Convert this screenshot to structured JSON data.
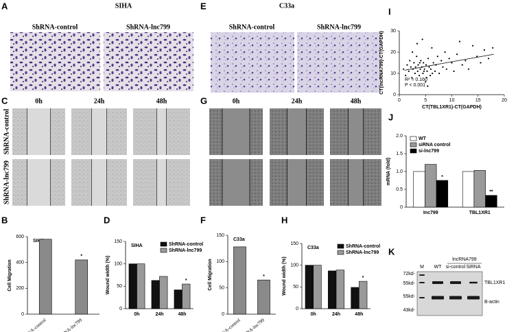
{
  "figure": {
    "A": {
      "label": "A",
      "title": "SIHA",
      "columns": [
        "ShRNA-control",
        "ShRNA-lnc799"
      ]
    },
    "E": {
      "label": "E",
      "title": "C33a",
      "columns": [
        "ShRNA-control",
        "ShRNA-lnc799"
      ]
    },
    "C": {
      "label": "C",
      "times": [
        "0h",
        "24h",
        "48h"
      ],
      "rows": [
        "ShRNA-control",
        "ShRNA-lnc799"
      ]
    },
    "G": {
      "label": "G",
      "times": [
        "0h",
        "24h",
        "48h"
      ]
    },
    "K": {
      "label": "K",
      "markers": [
        "72kd-",
        "55kd-",
        "55kd-",
        "43kd-"
      ],
      "lanes": [
        "M",
        "WT",
        "si-control",
        "SiRNA"
      ],
      "group": "lncRNA799",
      "proteins": [
        "TBL1XR1",
        "B-actin"
      ]
    }
  },
  "chart_data": [
    {
      "type": "bar",
      "label": "B",
      "title": "SIHA",
      "ylabel": "Cell Migration",
      "categories": [
        "ShRNA-control",
        "ShRNA-lnc799"
      ],
      "values": [
        580,
        420
      ],
      "color": "#8a8a8a",
      "ylim": [
        0,
        600
      ],
      "yticks": [
        0,
        200,
        400,
        600
      ],
      "annotations": [
        {
          "text": "*",
          "category": "ShRNA-lnc799"
        }
      ]
    },
    {
      "type": "bar",
      "label": "D",
      "title": "SIHA",
      "ylabel": "Wound width (%)",
      "categories": [
        "0h",
        "24h",
        "48h"
      ],
      "series": [
        {
          "name": "ShRNA-control",
          "color": "#111111",
          "values": [
            100,
            63,
            42
          ]
        },
        {
          "name": "ShRNA-lnc799",
          "color": "#9a9a9a",
          "values": [
            100,
            72,
            55
          ]
        }
      ],
      "ylim": [
        0,
        150
      ],
      "yticks": [
        0,
        50,
        100,
        150
      ],
      "legend": "upper right",
      "annotations": [
        {
          "text": "*",
          "category": "48h"
        }
      ]
    },
    {
      "type": "bar",
      "label": "F",
      "title": "C33a",
      "ylabel": "Cell Migration",
      "categories": [
        "ShRNA-control",
        "ShRNA-lnc799"
      ],
      "values": [
        128,
        65
      ],
      "color": "#8a8a8a",
      "ylim": [
        0,
        150
      ],
      "yticks": [
        0,
        50,
        100,
        150
      ],
      "annotations": [
        {
          "text": "*",
          "category": "ShRNA-lnc799"
        }
      ]
    },
    {
      "type": "bar",
      "label": "H",
      "title": "C33a",
      "ylabel": "Wound width (%)",
      "categories": [
        "0h",
        "24h",
        "48h"
      ],
      "series": [
        {
          "name": "ShRNA-control",
          "color": "#111111",
          "values": [
            100,
            87,
            49
          ]
        },
        {
          "name": "ShRNA-lnc799",
          "color": "#9a9a9a",
          "values": [
            100,
            89,
            63
          ]
        }
      ],
      "ylim": [
        0,
        150
      ],
      "yticks": [
        0,
        50,
        100,
        150
      ],
      "legend": "upper right",
      "annotations": [
        {
          "text": "*",
          "category": "48h"
        }
      ]
    },
    {
      "type": "scatter",
      "label": "I",
      "xlabel": "CT(TBL1XR1)-CT(GAPDH)",
      "ylabel": "CT(lncRNA799)-CT(GAPDH)",
      "x": [
        0.8,
        1.2,
        1.5,
        1.8,
        2.0,
        2.2,
        2.4,
        2.6,
        2.8,
        3.0,
        3.1,
        3.3,
        3.5,
        3.6,
        3.8,
        4.0,
        4.1,
        4.3,
        4.5,
        4.6,
        4.8,
        5.0,
        5.1,
        5.3,
        5.5,
        5.7,
        5.9,
        6.0,
        6.2,
        6.5,
        6.8,
        7.0,
        7.3,
        7.6,
        8.0,
        8.3,
        8.7,
        9.0,
        9.5,
        10.0,
        10.4,
        11.0,
        11.5,
        12.0,
        12.6,
        13.2,
        14.0,
        14.8,
        15.5,
        16.2,
        17.0,
        17.8,
        2.5,
        3.4,
        4.4,
        5.4,
        6.3,
        3.9,
        4.7,
        5.2
      ],
      "y": [
        12,
        9,
        14,
        11,
        16,
        13,
        8,
        12,
        15,
        10,
        13,
        18,
        11,
        14,
        9,
        12,
        16,
        13,
        10,
        15,
        12,
        6,
        14,
        11,
        17,
        13,
        9,
        12,
        22,
        15,
        11,
        14,
        18,
        10,
        16,
        13,
        20,
        12,
        17,
        15,
        11,
        19,
        25,
        14,
        16,
        12,
        23,
        18,
        15,
        21,
        17,
        22,
        20,
        24,
        26,
        4,
        10,
        15,
        11,
        8
      ],
      "color": "#000000",
      "trendline": {
        "x": [
          1,
          18
        ],
        "y": [
          11.5,
          19
        ]
      },
      "xlim": [
        0,
        20
      ],
      "xticks": [
        0,
        5,
        10,
        15,
        20
      ],
      "ylim": [
        0,
        30
      ],
      "yticks": [
        0,
        10,
        20,
        30
      ],
      "annotations": [
        "R² = 0.160",
        "P < 0.001"
      ]
    },
    {
      "type": "bar",
      "label": "J",
      "ylabel": "mRNA (fold)",
      "categories": [
        "Inc799",
        "TBL1XR1"
      ],
      "series": [
        {
          "name": "WT",
          "color": "#ffffff",
          "values": [
            1,
            1
          ]
        },
        {
          "name": "siRNA control",
          "color": "#9a9a9a",
          "values": [
            1.2,
            1.03
          ]
        },
        {
          "name": "si-lnc799",
          "color": "#000000",
          "values": [
            0.75,
            0.33
          ]
        }
      ],
      "ylim": [
        0,
        2
      ],
      "yticks": [
        0,
        0.5,
        {
          "value": 1,
          "label": "1.0"
        },
        1.5,
        {
          "value": 2,
          "label": "2.0"
        }
      ],
      "legend": "upper left",
      "annotations": [
        {
          "text": "*",
          "category": "Inc799"
        },
        {
          "text": "**",
          "category": "TBL1XR1"
        }
      ]
    }
  ]
}
